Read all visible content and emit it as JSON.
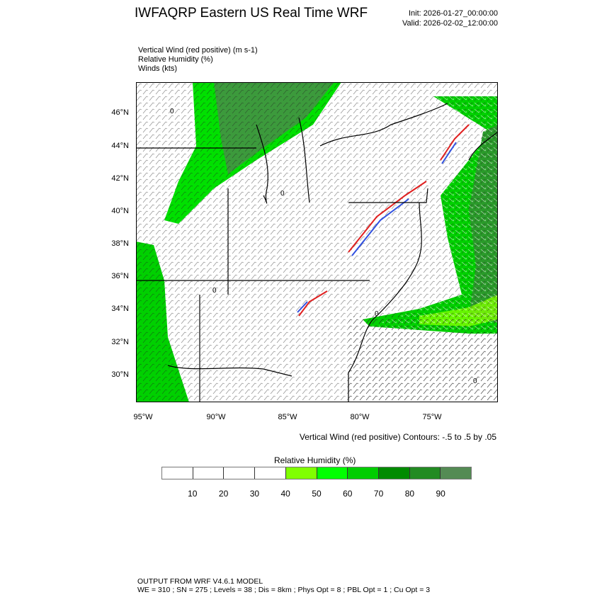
{
  "header": {
    "title": "IWFAQRP Eastern US Real Time WRF",
    "init": "Init: 2026-01-27_00:00:00",
    "valid": "Valid: 2026-02-02_12:00:00"
  },
  "fields": [
    "Vertical Wind (red positive)   (m s-1)",
    "Relative Humidity   (%)",
    "Winds   (kts)"
  ],
  "map": {
    "lat_labels": [
      "46°N",
      "44°N",
      "42°N",
      "40°N",
      "38°N",
      "36°N",
      "34°N",
      "32°N",
      "30°N"
    ],
    "lon_labels": [
      "95°W",
      "90°W",
      "85°W",
      "80°W",
      "75°W"
    ],
    "contour_label": "0"
  },
  "contours_note": "Vertical Wind (red positive) Contours: -.5 to .5 by .05",
  "colorbar": {
    "title": "Relative Humidity  (%)",
    "labels": [
      "10",
      "20",
      "30",
      "40",
      "50",
      "60",
      "70",
      "80",
      "90"
    ],
    "colors": [
      "#ffffff",
      "#ffffff",
      "#ffffff",
      "#ffffff",
      "#80ff00",
      "#00ff00",
      "#00cd00",
      "#008b00",
      "#228b22",
      "#548b54"
    ]
  },
  "footer": {
    "line1": "OUTPUT FROM WRF V4.6.1 MODEL",
    "line2": "WE = 310 ; SN = 275 ; Levels = 38 ; Dis = 8km ; Phys Opt = 8 ; PBL Opt = 1 ; Cu Opt = 3"
  }
}
